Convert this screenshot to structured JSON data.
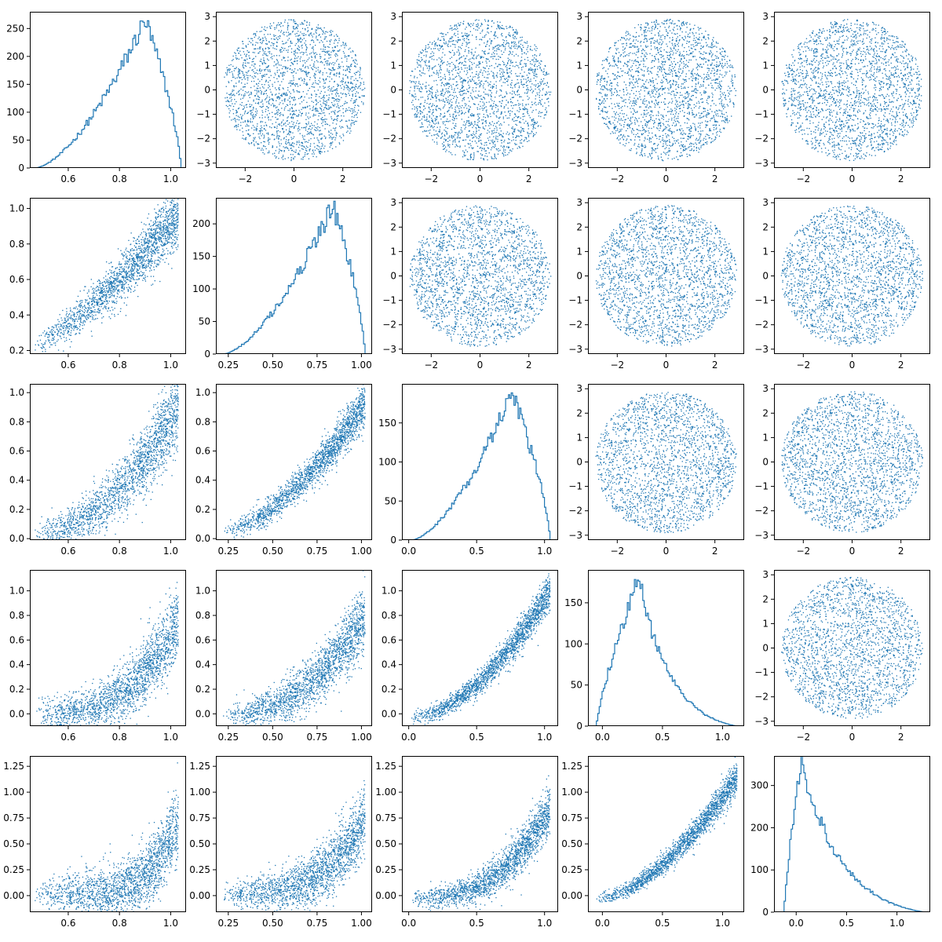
{
  "figure": {
    "type": "corner-pairplot",
    "grid": "5x5",
    "point_color": "#1f77b4",
    "background": "#ffffff",
    "title": "",
    "legend": "none",
    "grid_lines": false
  },
  "chart_data": [
    {
      "row": 0,
      "col": 0,
      "type": "histogram",
      "xlim": [
        0.45,
        1.06
      ],
      "ylim": [
        0,
        280
      ],
      "xticks": [
        0.6,
        0.8,
        1.0
      ],
      "yticks": [
        0,
        50,
        100,
        150,
        200,
        250
      ],
      "xtick_labels": [
        "0.6",
        "0.8",
        "1.0"
      ],
      "ytick_labels": [
        "0",
        "50",
        "100",
        "150",
        "200",
        "250"
      ],
      "distribution": {
        "kind": "left-skewed",
        "range": [
          0.47,
          1.04
        ],
        "mode": 0.9,
        "peak_count": 265
      }
    },
    {
      "row": 0,
      "col": 1,
      "type": "scatter",
      "xlim": [
        -3.2,
        3.2
      ],
      "ylim": [
        -3.2,
        3.2
      ],
      "xticks": [
        -2,
        0,
        2
      ],
      "yticks": [
        -3,
        -2,
        -1,
        0,
        1,
        2,
        3
      ],
      "xtick_labels": [
        "−2",
        "0",
        "2"
      ],
      "ytick_labels": [
        "−3",
        "−2",
        "−1",
        "0",
        "1",
        "2",
        "3"
      ],
      "distribution": {
        "kind": "uniform-disk",
        "center": [
          0,
          0
        ],
        "radius": 2.9
      }
    },
    {
      "row": 0,
      "col": 2,
      "type": "scatter",
      "xlim": [
        -3.2,
        3.2
      ],
      "ylim": [
        -3.2,
        3.2
      ],
      "xticks": [
        -2,
        0,
        2
      ],
      "yticks": [
        -3,
        -2,
        -1,
        0,
        1,
        2,
        3
      ],
      "xtick_labels": [
        "−2",
        "0",
        "2"
      ],
      "ytick_labels": [
        "−3",
        "−2",
        "−1",
        "0",
        "1",
        "2",
        "3"
      ],
      "distribution": {
        "kind": "uniform-disk",
        "center": [
          0,
          0
        ],
        "radius": 2.9
      }
    },
    {
      "row": 0,
      "col": 3,
      "type": "scatter",
      "xlim": [
        -3.2,
        3.2
      ],
      "ylim": [
        -3.2,
        3.2
      ],
      "xticks": [
        -2,
        0,
        2
      ],
      "yticks": [
        -3,
        -2,
        -1,
        0,
        1,
        2,
        3
      ],
      "xtick_labels": [
        "−2",
        "0",
        "2"
      ],
      "ytick_labels": [
        "−3",
        "−2",
        "−1",
        "0",
        "1",
        "2",
        "3"
      ],
      "distribution": {
        "kind": "uniform-disk",
        "center": [
          0,
          0
        ],
        "radius": 2.9
      }
    },
    {
      "row": 0,
      "col": 4,
      "type": "scatter",
      "xlim": [
        -3.2,
        3.2
      ],
      "ylim": [
        -3.2,
        3.2
      ],
      "xticks": [
        -2,
        0,
        2
      ],
      "yticks": [
        -3,
        -2,
        -1,
        0,
        1,
        2,
        3
      ],
      "xtick_labels": [
        "−2",
        "0",
        "2"
      ],
      "ytick_labels": [
        "−3",
        "−2",
        "−1",
        "0",
        "1",
        "2",
        "3"
      ],
      "distribution": {
        "kind": "uniform-disk",
        "center": [
          0,
          0
        ],
        "radius": 2.9
      }
    },
    {
      "row": 1,
      "col": 0,
      "type": "scatter",
      "xlim": [
        0.45,
        1.06
      ],
      "ylim": [
        0.18,
        1.06
      ],
      "xticks": [
        0.6,
        0.8,
        1.0
      ],
      "yticks": [
        0.2,
        0.4,
        0.6,
        0.8,
        1.0
      ],
      "xtick_labels": [
        "0.6",
        "0.8",
        "1.0"
      ],
      "ytick_labels": [
        "0.2",
        "0.4",
        "0.6",
        "0.8",
        "1.0"
      ],
      "distribution": {
        "kind": "curve",
        "x_range": [
          0.47,
          1.03
        ],
        "y_at_xmin": 0.24,
        "y_at_xmax": 0.96,
        "power": 1.3,
        "spread": 0.06
      }
    },
    {
      "row": 1,
      "col": 1,
      "type": "histogram",
      "xlim": [
        0.18,
        1.06
      ],
      "ylim": [
        0,
        240
      ],
      "xticks": [
        0.25,
        0.5,
        0.75,
        1.0
      ],
      "yticks": [
        0,
        50,
        100,
        150,
        200
      ],
      "xtick_labels": [
        "0.25",
        "0.50",
        "0.75",
        "1.00"
      ],
      "ytick_labels": [
        "0",
        "50",
        "100",
        "150",
        "200"
      ],
      "distribution": {
        "kind": "left-skewed",
        "range": [
          0.22,
          1.02
        ],
        "mode": 0.84,
        "peak_count": 230
      }
    },
    {
      "row": 1,
      "col": 2,
      "type": "scatter",
      "xlim": [
        -3.2,
        3.2
      ],
      "ylim": [
        -3.2,
        3.2
      ],
      "xticks": [
        -2,
        0,
        2
      ],
      "yticks": [
        -3,
        -2,
        -1,
        0,
        1,
        2,
        3
      ],
      "xtick_labels": [
        "−2",
        "0",
        "2"
      ],
      "ytick_labels": [
        "−3",
        "−2",
        "−1",
        "0",
        "1",
        "2",
        "3"
      ],
      "distribution": {
        "kind": "uniform-disk",
        "center": [
          0,
          0
        ],
        "radius": 2.9
      }
    },
    {
      "row": 1,
      "col": 3,
      "type": "scatter",
      "xlim": [
        -3.2,
        3.2
      ],
      "ylim": [
        -3.2,
        3.2
      ],
      "xticks": [
        -2,
        0,
        2
      ],
      "yticks": [
        -3,
        -2,
        -1,
        0,
        1,
        2,
        3
      ],
      "xtick_labels": [
        "−2",
        "0",
        "2"
      ],
      "ytick_labels": [
        "−3",
        "−2",
        "−1",
        "0",
        "1",
        "2",
        "3"
      ],
      "distribution": {
        "kind": "uniform-disk",
        "center": [
          0,
          0
        ],
        "radius": 2.9
      }
    },
    {
      "row": 1,
      "col": 4,
      "type": "scatter",
      "xlim": [
        -3.2,
        3.2
      ],
      "ylim": [
        -3.2,
        3.2
      ],
      "xticks": [
        -2,
        0,
        2
      ],
      "yticks": [
        -3,
        -2,
        -1,
        0,
        1,
        2,
        3
      ],
      "xtick_labels": [
        "−2",
        "0",
        "2"
      ],
      "ytick_labels": [
        "−3",
        "−2",
        "−1",
        "0",
        "1",
        "2",
        "3"
      ],
      "distribution": {
        "kind": "uniform-disk",
        "center": [
          0,
          0
        ],
        "radius": 2.9
      }
    },
    {
      "row": 2,
      "col": 0,
      "type": "scatter",
      "xlim": [
        0.45,
        1.06
      ],
      "ylim": [
        -0.01,
        1.06
      ],
      "xticks": [
        0.6,
        0.8,
        1.0
      ],
      "yticks": [
        0,
        0.2,
        0.4,
        0.6,
        0.8,
        1.0
      ],
      "xtick_labels": [
        "0.6",
        "0.8",
        "1.0"
      ],
      "ytick_labels": [
        "0.0",
        "0.2",
        "0.4",
        "0.6",
        "0.8",
        "1.0"
      ],
      "distribution": {
        "kind": "curve",
        "x_range": [
          0.47,
          1.03
        ],
        "y_at_xmin": 0.04,
        "y_at_xmax": 0.9,
        "power": 2.0,
        "spread": 0.09
      }
    },
    {
      "row": 2,
      "col": 1,
      "type": "scatter",
      "xlim": [
        0.18,
        1.06
      ],
      "ylim": [
        -0.01,
        1.06
      ],
      "xticks": [
        0.25,
        0.5,
        0.75,
        1.0
      ],
      "yticks": [
        0,
        0.2,
        0.4,
        0.6,
        0.8,
        1.0
      ],
      "xtick_labels": [
        "0.25",
        "0.50",
        "0.75",
        "1.00"
      ],
      "ytick_labels": [
        "0.0",
        "0.2",
        "0.4",
        "0.6",
        "0.8",
        "1.0"
      ],
      "distribution": {
        "kind": "curve",
        "x_range": [
          0.22,
          1.02
        ],
        "y_at_xmin": 0.05,
        "y_at_xmax": 0.92,
        "power": 1.6,
        "spread": 0.05
      }
    },
    {
      "row": 2,
      "col": 2,
      "type": "histogram",
      "xlim": [
        -0.05,
        1.1
      ],
      "ylim": [
        0,
        200
      ],
      "xticks": [
        0,
        0.5,
        1.0
      ],
      "yticks": [
        0,
        50,
        100,
        150
      ],
      "xtick_labels": [
        "0.0",
        "0.5",
        "1.0"
      ],
      "ytick_labels": [
        "0",
        "50",
        "100",
        "150"
      ],
      "distribution": {
        "kind": "left-skewed",
        "range": [
          0.02,
          1.04
        ],
        "mode": 0.76,
        "peak_count": 188
      }
    },
    {
      "row": 2,
      "col": 3,
      "type": "scatter",
      "xlim": [
        -3.2,
        3.2
      ],
      "ylim": [
        -3.2,
        3.2
      ],
      "xticks": [
        -2,
        0,
        2
      ],
      "yticks": [
        -3,
        -2,
        -1,
        0,
        1,
        2,
        3
      ],
      "xtick_labels": [
        "−2",
        "0",
        "2"
      ],
      "ytick_labels": [
        "−3",
        "−2",
        "−1",
        "0",
        "1",
        "2",
        "3"
      ],
      "distribution": {
        "kind": "uniform-disk",
        "center": [
          0,
          0
        ],
        "radius": 2.9
      }
    },
    {
      "row": 2,
      "col": 4,
      "type": "scatter",
      "xlim": [
        -3.2,
        3.2
      ],
      "ylim": [
        -3.2,
        3.2
      ],
      "xticks": [
        -2,
        0,
        2
      ],
      "yticks": [
        -3,
        -2,
        -1,
        0,
        1,
        2,
        3
      ],
      "xtick_labels": [
        "−2",
        "0",
        "2"
      ],
      "ytick_labels": [
        "−3",
        "−2",
        "−1",
        "0",
        "1",
        "2",
        "3"
      ],
      "distribution": {
        "kind": "uniform-disk",
        "center": [
          0,
          0
        ],
        "radius": 2.9
      }
    },
    {
      "row": 3,
      "col": 0,
      "type": "scatter",
      "xlim": [
        0.45,
        1.06
      ],
      "ylim": [
        -0.1,
        1.17
      ],
      "xticks": [
        0.6,
        0.8,
        1.0
      ],
      "yticks": [
        0,
        0.2,
        0.4,
        0.6,
        0.8,
        1.0
      ],
      "xtick_labels": [
        "0.6",
        "0.8",
        "1.0"
      ],
      "ytick_labels": [
        "0.0",
        "0.2",
        "0.4",
        "0.6",
        "0.8",
        "1.0"
      ],
      "distribution": {
        "kind": "curve",
        "x_range": [
          0.47,
          1.03
        ],
        "y_at_xmin": 0.0,
        "y_at_xmax": 0.75,
        "power": 3.0,
        "spread": 0.1
      }
    },
    {
      "row": 3,
      "col": 1,
      "type": "scatter",
      "xlim": [
        0.18,
        1.06
      ],
      "ylim": [
        -0.1,
        1.17
      ],
      "xticks": [
        0.25,
        0.5,
        0.75,
        1.0
      ],
      "yticks": [
        0,
        0.2,
        0.4,
        0.6,
        0.8,
        1.0
      ],
      "xtick_labels": [
        "0.25",
        "0.50",
        "0.75",
        "1.00"
      ],
      "ytick_labels": [
        "0.0",
        "0.2",
        "0.4",
        "0.6",
        "0.8",
        "1.0"
      ],
      "distribution": {
        "kind": "curve",
        "x_range": [
          0.22,
          1.02
        ],
        "y_at_xmin": 0.0,
        "y_at_xmax": 0.8,
        "power": 2.4,
        "spread": 0.09
      }
    },
    {
      "row": 3,
      "col": 2,
      "type": "scatter",
      "xlim": [
        -0.05,
        1.1
      ],
      "ylim": [
        -0.1,
        1.17
      ],
      "xticks": [
        0,
        0.5,
        1.0
      ],
      "yticks": [
        0,
        0.2,
        0.4,
        0.6,
        0.8,
        1.0
      ],
      "xtick_labels": [
        "0.0",
        "0.5",
        "1.0"
      ],
      "ytick_labels": [
        "0.0",
        "0.2",
        "0.4",
        "0.6",
        "0.8",
        "1.0"
      ],
      "distribution": {
        "kind": "curve",
        "x_range": [
          0.02,
          1.04
        ],
        "y_at_xmin": -0.03,
        "y_at_xmax": 1.0,
        "power": 1.8,
        "spread": 0.05
      }
    },
    {
      "row": 3,
      "col": 3,
      "type": "histogram",
      "xlim": [
        -0.12,
        1.18
      ],
      "ylim": [
        0,
        190
      ],
      "xticks": [
        0,
        0.5,
        1.0
      ],
      "yticks": [
        0,
        50,
        100,
        150
      ],
      "xtick_labels": [
        "0.0",
        "0.5",
        "1.0"
      ],
      "ytick_labels": [
        "0",
        "50",
        "100",
        "150"
      ],
      "distribution": {
        "kind": "right-skewed",
        "range": [
          -0.05,
          1.12
        ],
        "mode": 0.3,
        "peak_count": 180
      }
    },
    {
      "row": 3,
      "col": 4,
      "type": "scatter",
      "xlim": [
        -3.2,
        3.2
      ],
      "ylim": [
        -3.2,
        3.2
      ],
      "xticks": [
        -2,
        0,
        2
      ],
      "yticks": [
        -3,
        -2,
        -1,
        0,
        1,
        2,
        3
      ],
      "xtick_labels": [
        "−2",
        "0",
        "2"
      ],
      "ytick_labels": [
        "−3",
        "−2",
        "−1",
        "0",
        "1",
        "2",
        "3"
      ],
      "distribution": {
        "kind": "uniform-disk",
        "center": [
          0,
          0
        ],
        "radius": 2.9
      }
    },
    {
      "row": 4,
      "col": 0,
      "type": "scatter",
      "xlim": [
        0.45,
        1.06
      ],
      "ylim": [
        -0.16,
        1.35
      ],
      "xticks": [
        0.6,
        0.8,
        1.0
      ],
      "yticks": [
        0,
        0.25,
        0.5,
        0.75,
        1.0,
        1.25
      ],
      "xtick_labels": [
        "0.6",
        "0.8",
        "1.0"
      ],
      "ytick_labels": [
        "0.00",
        "0.25",
        "0.50",
        "0.75",
        "1.00",
        "1.25"
      ],
      "distribution": {
        "kind": "curve",
        "x_range": [
          0.47,
          1.03
        ],
        "y_at_xmin": 0.02,
        "y_at_xmax": 0.7,
        "power": 5.0,
        "spread": 0.12
      }
    },
    {
      "row": 4,
      "col": 1,
      "type": "scatter",
      "xlim": [
        0.18,
        1.06
      ],
      "ylim": [
        -0.16,
        1.35
      ],
      "xticks": [
        0.25,
        0.5,
        0.75,
        1.0
      ],
      "yticks": [
        0,
        0.25,
        0.5,
        0.75,
        1.0,
        1.25
      ],
      "xtick_labels": [
        "0.25",
        "0.50",
        "0.75",
        "1.00"
      ],
      "ytick_labels": [
        "0.00",
        "0.25",
        "0.50",
        "0.75",
        "1.00",
        "1.25"
      ],
      "distribution": {
        "kind": "curve",
        "x_range": [
          0.22,
          1.02
        ],
        "y_at_xmin": 0.02,
        "y_at_xmax": 0.75,
        "power": 3.5,
        "spread": 0.11
      }
    },
    {
      "row": 4,
      "col": 2,
      "type": "scatter",
      "xlim": [
        -0.05,
        1.1
      ],
      "ylim": [
        -0.16,
        1.35
      ],
      "xticks": [
        0,
        0.5,
        1.0
      ],
      "yticks": [
        0,
        0.25,
        0.5,
        0.75,
        1.0,
        1.25
      ],
      "xtick_labels": [
        "0.0",
        "0.5",
        "1.0"
      ],
      "ytick_labels": [
        "0.00",
        "0.25",
        "0.50",
        "0.75",
        "1.00",
        "1.25"
      ],
      "distribution": {
        "kind": "curve",
        "x_range": [
          0.02,
          1.04
        ],
        "y_at_xmin": -0.02,
        "y_at_xmax": 0.85,
        "power": 2.8,
        "spread": 0.08
      }
    },
    {
      "row": 4,
      "col": 3,
      "type": "scatter",
      "xlim": [
        -0.12,
        1.18
      ],
      "ylim": [
        -0.16,
        1.35
      ],
      "xticks": [
        0,
        0.5,
        1.0
      ],
      "yticks": [
        0,
        0.25,
        0.5,
        0.75,
        1.0,
        1.25
      ],
      "xtick_labels": [
        "0.0",
        "0.5",
        "1.0"
      ],
      "ytick_labels": [
        "0.00",
        "0.25",
        "0.50",
        "0.75",
        "1.00",
        "1.25"
      ],
      "distribution": {
        "kind": "curve",
        "x_range": [
          -0.05,
          1.12
        ],
        "y_at_xmin": -0.03,
        "y_at_xmax": 1.15,
        "power": 1.7,
        "spread": 0.05
      }
    },
    {
      "row": 4,
      "col": 4,
      "type": "histogram",
      "xlim": [
        -0.22,
        1.33
      ],
      "ylim": [
        0,
        370
      ],
      "xticks": [
        0,
        0.5,
        1.0
      ],
      "yticks": [
        0,
        100,
        200,
        300
      ],
      "xtick_labels": [
        "0.0",
        "0.5",
        "1.0"
      ],
      "ytick_labels": [
        "0",
        "100",
        "200",
        "300"
      ],
      "distribution": {
        "kind": "right-skewed",
        "range": [
          -0.12,
          1.28
        ],
        "mode": 0.05,
        "peak_count": 355
      }
    }
  ]
}
